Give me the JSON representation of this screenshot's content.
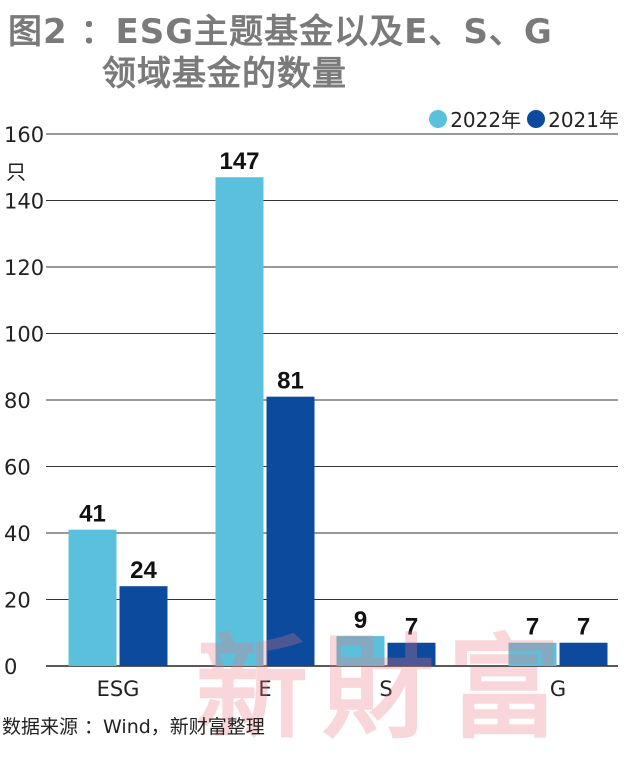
{
  "chart_data": {
    "type": "bar",
    "title": "图2：ESG主题基金以及E、S、G领域基金的数量",
    "title_lines": [
      "图2 ：ESG主题基金以及E、S、G",
      "领域基金的数量"
    ],
    "categories": [
      "ESG",
      "E",
      "S",
      "G"
    ],
    "series": [
      {
        "name": "2022年",
        "values": [
          41,
          147,
          9,
          7
        ],
        "color": "#5bc0db"
      },
      {
        "name": "2021年",
        "values": [
          24,
          81,
          7,
          7
        ],
        "color": "#0b4a9c"
      }
    ],
    "ylabel": "只",
    "ylim": [
      0,
      160
    ],
    "yticks": [
      0,
      20,
      40,
      60,
      80,
      100,
      120,
      140,
      160
    ],
    "grid": true,
    "legend_position": "top-right"
  },
  "source": "数据来源 ：Wind，新财富整理",
  "watermark": "新財富",
  "colors": {
    "title": "#7a7a7a",
    "grid": "#222222"
  }
}
